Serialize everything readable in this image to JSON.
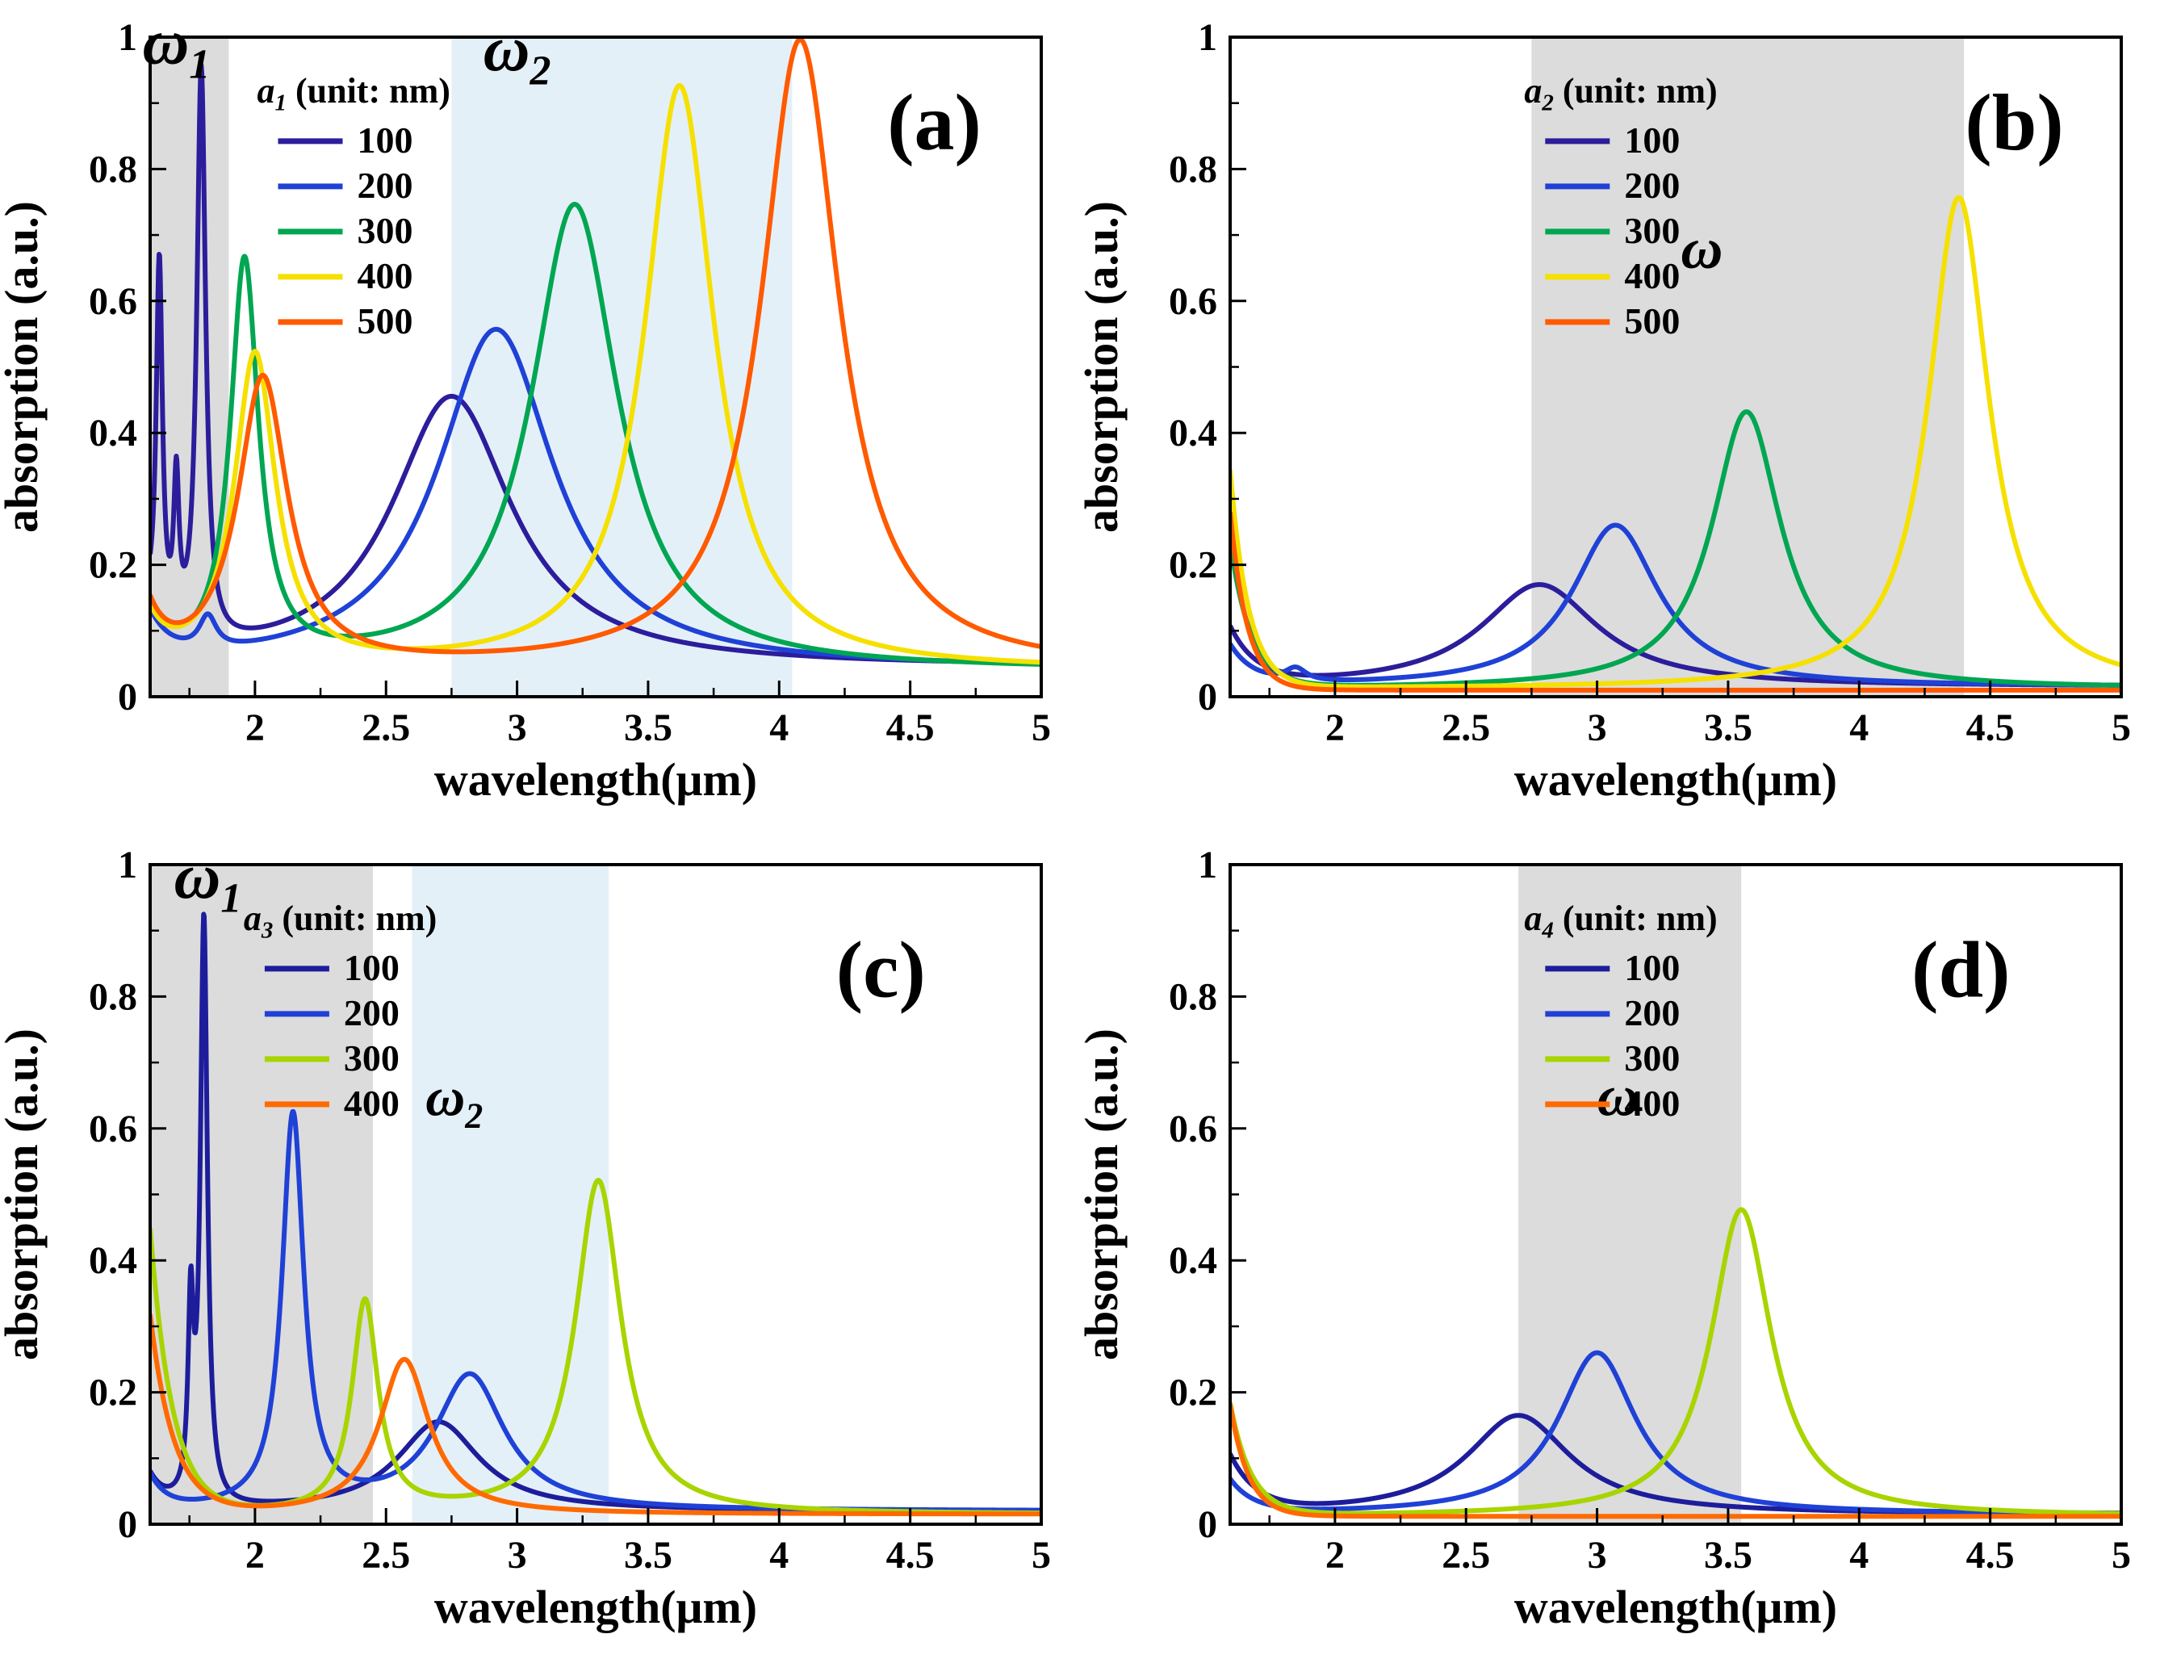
{
  "figure": {
    "background": "#ffffff",
    "font_color": "#000000"
  },
  "chart_data": [
    {
      "id": "a",
      "type": "line",
      "panel_label": "(a)",
      "xlabel": "wavelength(μm)",
      "ylabel": "absorption (a.u.)",
      "xlim": [
        1.6,
        5
      ],
      "ylim": [
        0,
        1
      ],
      "xticks": [
        2,
        2.5,
        3,
        3.5,
        4,
        4.5,
        5
      ],
      "yticks": [
        0,
        0.2,
        0.4,
        0.6,
        0.8,
        1
      ],
      "letter_fx": 0.88,
      "letter_fy": 0.17,
      "legend": {
        "title_var": "a",
        "title_sub": "1",
        "title_rest": " (unit: nm)",
        "fx": 0.12,
        "fy": 0.05
      },
      "regions": [
        {
          "x0": 1.6,
          "x1": 1.9,
          "color": "#dcdcdc",
          "label": "ω",
          "label_sub": "1",
          "label_x": 1.7,
          "label_y": 0.96,
          "label_size": 80
        },
        {
          "x0": 2.75,
          "x1": 4.05,
          "color": "#e4f0f8",
          "label": "ω",
          "label_sub": "2",
          "label_x": 3.0,
          "label_y": 0.95,
          "label_size": 80
        }
      ],
      "series": [
        {
          "name": "100",
          "color": "#2b1d9b",
          "baseline": 0.045,
          "edge": {
            "amp": 0.06,
            "decay": 0.06
          },
          "peaks": [
            {
              "c": 1.635,
              "h": 0.55,
              "w": 0.014
            },
            {
              "c": 1.7,
              "h": 0.22,
              "w": 0.012
            },
            {
              "c": 1.795,
              "h": 0.87,
              "w": 0.02
            },
            {
              "c": 2.75,
              "h": 0.41,
              "w": 0.28
            }
          ]
        },
        {
          "name": "200",
          "color": "#1f41d6",
          "baseline": 0.042,
          "edge": {
            "amp": 0.07,
            "decay": 0.08
          },
          "peaks": [
            {
              "c": 1.82,
              "h": 0.05,
              "w": 0.04
            },
            {
              "c": 2.92,
              "h": 0.515,
              "w": 0.27
            }
          ]
        },
        {
          "name": "300",
          "color": "#00a651",
          "baseline": 0.04,
          "edge": {
            "amp": 0.08,
            "decay": 0.07
          },
          "peaks": [
            {
              "c": 1.96,
              "h": 0.61,
              "w": 0.065
            },
            {
              "c": 3.22,
              "h": 0.705,
              "w": 0.2
            }
          ]
        },
        {
          "name": "400",
          "color": "#f5e000",
          "baseline": 0.04,
          "edge": {
            "amp": 0.07,
            "decay": 0.07
          },
          "peaks": [
            {
              "c": 2.0,
              "h": 0.475,
              "w": 0.095
            },
            {
              "c": 3.62,
              "h": 0.885,
              "w": 0.16
            }
          ]
        },
        {
          "name": "500",
          "color": "#ff5a00",
          "baseline": 0.04,
          "edge": {
            "amp": 0.08,
            "decay": 0.07
          },
          "peaks": [
            {
              "c": 2.03,
              "h": 0.44,
              "w": 0.115
            },
            {
              "c": 4.08,
              "h": 0.955,
              "w": 0.18
            }
          ]
        }
      ]
    },
    {
      "id": "b",
      "type": "line",
      "panel_label": "(b)",
      "xlabel": "wavelength(μm)",
      "ylabel": "absorption (a.u.)",
      "xlim": [
        1.6,
        5
      ],
      "ylim": [
        0,
        1
      ],
      "xticks": [
        2,
        2.5,
        3,
        3.5,
        4,
        4.5,
        5
      ],
      "yticks": [
        0,
        0.2,
        0.4,
        0.6,
        0.8,
        1
      ],
      "letter_fx": 0.88,
      "letter_fy": 0.17,
      "legend": {
        "title_var": "a",
        "title_sub": "2",
        "title_rest": " (unit: nm)",
        "fx": 0.33,
        "fy": 0.05
      },
      "regions": [
        {
          "x0": 2.75,
          "x1": 4.4,
          "color": "#dcdcdc",
          "label": "ω",
          "label_x": 3.4,
          "label_y": 0.65,
          "label_size": 72
        }
      ],
      "series": [
        {
          "name": "100",
          "color": "#2b1d9b",
          "baseline": 0.015,
          "edge": {
            "amp": 0.085,
            "decay": 0.1
          },
          "peaks": [
            {
              "c": 2.78,
              "h": 0.155,
              "w": 0.27
            }
          ]
        },
        {
          "name": "200",
          "color": "#1f41d6",
          "baseline": 0.015,
          "edge": {
            "amp": 0.06,
            "decay": 0.09
          },
          "peaks": [
            {
              "c": 1.85,
              "h": 0.02,
              "w": 0.05
            },
            {
              "c": 3.07,
              "h": 0.245,
              "w": 0.2
            }
          ]
        },
        {
          "name": "300",
          "color": "#00a651",
          "baseline": 0.012,
          "edge": {
            "amp": 0.22,
            "decay": 0.08
          },
          "peaks": [
            {
              "c": 3.57,
              "h": 0.42,
              "w": 0.16
            }
          ]
        },
        {
          "name": "400",
          "color": "#f5e000",
          "baseline": 0.012,
          "edge": {
            "amp": 0.33,
            "decay": 0.07
          },
          "peaks": [
            {
              "c": 4.38,
              "h": 0.745,
              "w": 0.14
            }
          ]
        },
        {
          "name": "500",
          "color": "#ff5a00",
          "baseline": 0.01,
          "edge": {
            "amp": 0.27,
            "decay": 0.065
          },
          "peaks": []
        }
      ]
    },
    {
      "id": "c",
      "type": "line",
      "panel_label": "(c)",
      "xlabel": "wavelength(μm)",
      "ylabel": "absorption (a.u.)",
      "xlim": [
        1.6,
        5
      ],
      "ylim": [
        0,
        1
      ],
      "xticks": [
        2,
        2.5,
        3,
        3.5,
        4,
        4.5,
        5
      ],
      "yticks": [
        0,
        0.2,
        0.4,
        0.6,
        0.8,
        1
      ],
      "letter_fx": 0.82,
      "letter_fy": 0.2,
      "legend": {
        "title_var": "a",
        "title_sub": "3",
        "title_rest": " (unit: nm)",
        "fx": 0.105,
        "fy": 0.05
      },
      "regions": [
        {
          "x0": 1.6,
          "x1": 2.45,
          "color": "#dcdcdc",
          "label": "ω",
          "label_sub": "1",
          "label_x": 1.82,
          "label_y": 0.95,
          "label_size": 80
        },
        {
          "x0": 2.6,
          "x1": 3.35,
          "color": "#e4f0f8",
          "label": "ω",
          "label_sub": "2",
          "label_x": 2.76,
          "label_y": 0.62,
          "label_size": 68
        }
      ],
      "series": [
        {
          "name": "100",
          "color": "#1d1d9c",
          "baseline": 0.02,
          "edge": {
            "amp": 0.05,
            "decay": 0.06
          },
          "peaks": [
            {
              "c": 1.755,
              "h": 0.28,
              "w": 0.012
            },
            {
              "c": 1.805,
              "h": 0.885,
              "w": 0.016
            },
            {
              "c": 2.7,
              "h": 0.135,
              "w": 0.19
            }
          ]
        },
        {
          "name": "200",
          "color": "#1f41d6",
          "baseline": 0.02,
          "edge": {
            "amp": 0.05,
            "decay": 0.06
          },
          "peaks": [
            {
              "c": 2.145,
              "h": 0.595,
              "w": 0.05
            },
            {
              "c": 2.82,
              "h": 0.205,
              "w": 0.16
            }
          ]
        },
        {
          "name": "300",
          "color": "#a8d400",
          "baseline": 0.015,
          "edge": {
            "amp": 0.43,
            "decay": 0.085
          },
          "peaks": [
            {
              "c": 2.42,
              "h": 0.32,
              "w": 0.06
            },
            {
              "c": 3.31,
              "h": 0.505,
              "w": 0.105
            }
          ]
        },
        {
          "name": "400",
          "color": "#ff6a00",
          "baseline": 0.015,
          "edge": {
            "amp": 0.3,
            "decay": 0.09
          },
          "peaks": [
            {
              "c": 2.57,
              "h": 0.235,
              "w": 0.115
            }
          ]
        }
      ]
    },
    {
      "id": "d",
      "type": "line",
      "panel_label": "(d)",
      "xlabel": "wavelength(μm)",
      "ylabel": "absorption (a.u.)",
      "xlim": [
        1.6,
        5
      ],
      "ylim": [
        0,
        1
      ],
      "xticks": [
        2,
        2.5,
        3,
        3.5,
        4,
        4.5,
        5
      ],
      "yticks": [
        0,
        0.2,
        0.4,
        0.6,
        0.8,
        1
      ],
      "letter_fx": 0.82,
      "letter_fy": 0.2,
      "legend": {
        "title_var": "a",
        "title_sub": "4",
        "title_rest": " (unit: nm)",
        "fx": 0.33,
        "fy": 0.05
      },
      "regions": [
        {
          "x0": 2.7,
          "x1": 3.55,
          "color": "#dcdcdc",
          "label": "ω",
          "label_x": 3.08,
          "label_y": 0.62,
          "label_size": 72
        }
      ],
      "series": [
        {
          "name": "100",
          "color": "#1d1d9c",
          "baseline": 0.015,
          "edge": {
            "amp": 0.085,
            "decay": 0.1
          },
          "peaks": [
            {
              "c": 2.7,
              "h": 0.15,
              "w": 0.24
            }
          ]
        },
        {
          "name": "200",
          "color": "#1f41d6",
          "baseline": 0.015,
          "edge": {
            "amp": 0.05,
            "decay": 0.09
          },
          "peaks": [
            {
              "c": 3.0,
              "h": 0.245,
              "w": 0.18
            }
          ]
        },
        {
          "name": "300",
          "color": "#a8d400",
          "baseline": 0.012,
          "edge": {
            "amp": 0.17,
            "decay": 0.08
          },
          "peaks": [
            {
              "c": 3.55,
              "h": 0.465,
              "w": 0.14
            }
          ]
        },
        {
          "name": "400",
          "color": "#ff6a00",
          "baseline": 0.012,
          "edge": {
            "amp": 0.17,
            "decay": 0.07
          },
          "peaks": []
        }
      ]
    }
  ]
}
